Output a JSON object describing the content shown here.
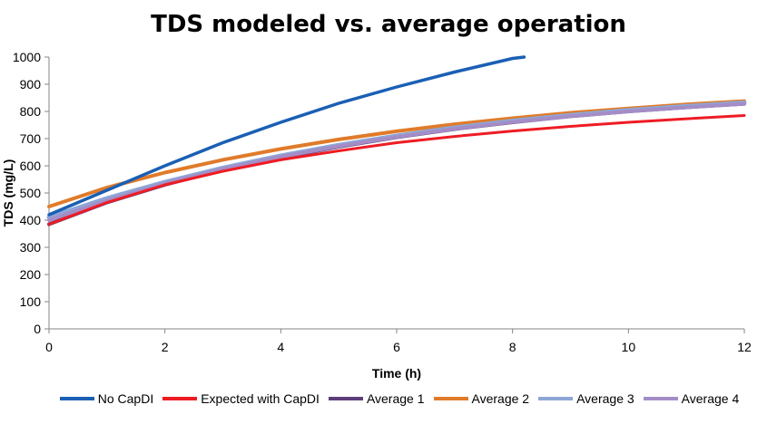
{
  "chart_data": {
    "type": "line",
    "title": "TDS modeled vs. average operation",
    "xlabel": "Time (h)",
    "ylabel": "TDS (mg/L)",
    "xlim": [
      0,
      12
    ],
    "ylim": [
      0,
      1000
    ],
    "xticks": [
      "0",
      "2",
      "4",
      "6",
      "8",
      "10",
      "12"
    ],
    "yticks": [
      "0",
      "100",
      "200",
      "300",
      "400",
      "500",
      "600",
      "700",
      "800",
      "900",
      "1000"
    ],
    "grid": false,
    "legend_position": "bottom",
    "series": [
      {
        "name": "No CapDI",
        "color": "#1a5fb4",
        "points": [
          [
            0,
            420
          ],
          [
            1,
            510
          ],
          [
            2,
            600
          ],
          [
            3,
            685
          ],
          [
            4,
            760
          ],
          [
            5,
            830
          ],
          [
            6,
            890
          ],
          [
            7,
            945
          ],
          [
            8,
            995
          ],
          [
            8.2,
            1000
          ]
        ]
      },
      {
        "name": "Expected with CapDI",
        "color": "#ee1c24",
        "points": [
          [
            0,
            385
          ],
          [
            1,
            465
          ],
          [
            2,
            530
          ],
          [
            3,
            580
          ],
          [
            4,
            622
          ],
          [
            5,
            655
          ],
          [
            6,
            685
          ],
          [
            7,
            708
          ],
          [
            8,
            728
          ],
          [
            9,
            745
          ],
          [
            10,
            760
          ],
          [
            11,
            773
          ],
          [
            12,
            785
          ]
        ]
      },
      {
        "name": "Average 1",
        "color": "#5e3e7a",
        "points": [
          [
            0,
            385
          ],
          [
            1,
            465
          ],
          [
            2,
            530
          ],
          [
            3,
            585
          ],
          [
            4,
            630
          ],
          [
            5,
            670
          ],
          [
            6,
            705
          ],
          [
            7,
            735
          ],
          [
            8,
            760
          ],
          [
            9,
            782
          ],
          [
            10,
            800
          ],
          [
            11,
            815
          ],
          [
            12,
            828
          ]
        ]
      },
      {
        "name": "Average 2",
        "color": "#e07b2a",
        "points": [
          [
            0,
            450
          ],
          [
            1,
            520
          ],
          [
            2,
            575
          ],
          [
            3,
            622
          ],
          [
            4,
            662
          ],
          [
            5,
            697
          ],
          [
            6,
            727
          ],
          [
            7,
            753
          ],
          [
            8,
            775
          ],
          [
            9,
            795
          ],
          [
            10,
            811
          ],
          [
            11,
            826
          ],
          [
            12,
            838
          ]
        ]
      },
      {
        "name": "Average 3",
        "color": "#8ea6d6",
        "points": [
          [
            0,
            410
          ],
          [
            1,
            480
          ],
          [
            2,
            540
          ],
          [
            3,
            592
          ],
          [
            4,
            637
          ],
          [
            5,
            676
          ],
          [
            6,
            710
          ],
          [
            7,
            740
          ],
          [
            8,
            765
          ],
          [
            9,
            786
          ],
          [
            10,
            804
          ],
          [
            11,
            819
          ],
          [
            12,
            832
          ]
        ]
      },
      {
        "name": "Average 4",
        "color": "#a48dc7",
        "points": [
          [
            0,
            400
          ],
          [
            1,
            472
          ],
          [
            2,
            535
          ],
          [
            3,
            588
          ],
          [
            4,
            633
          ],
          [
            5,
            672
          ],
          [
            6,
            706
          ],
          [
            7,
            736
          ],
          [
            8,
            761
          ],
          [
            9,
            782
          ],
          [
            10,
            800
          ],
          [
            11,
            815
          ],
          [
            12,
            828
          ]
        ]
      }
    ]
  }
}
